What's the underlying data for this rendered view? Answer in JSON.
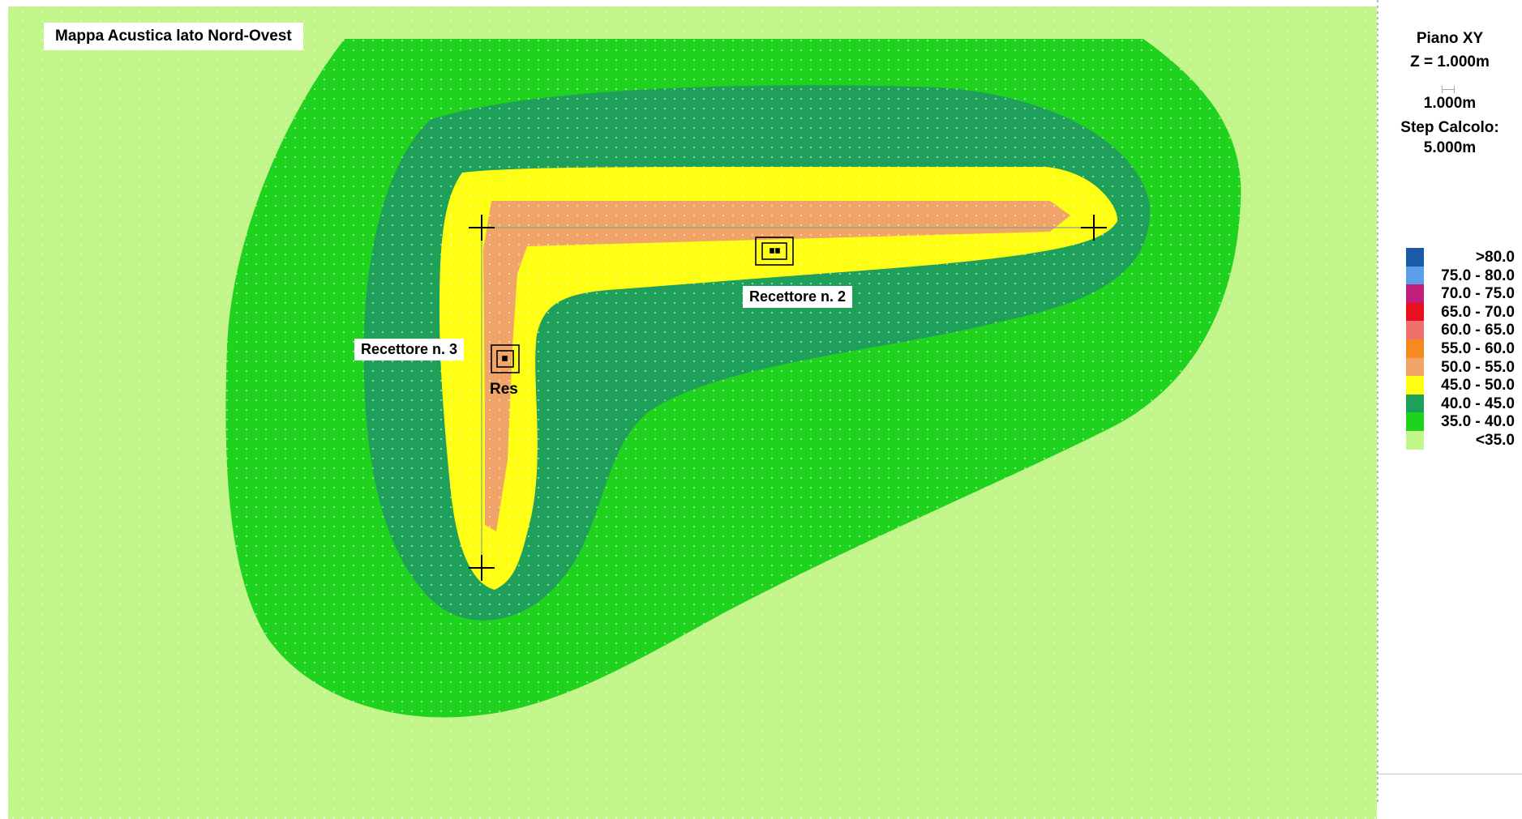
{
  "map_title": "Mappa Acustica lato Nord-Ovest",
  "labels": {
    "receptor_2": "Recettore n. 2",
    "receptor_3": "Recettore n. 3",
    "res": "Res"
  },
  "sidebar": {
    "plane": "Piano XY",
    "z": "Z = 1.000m",
    "scale": "1.000m",
    "step_label": "Step Calcolo:",
    "step_value": "5.000m"
  },
  "legend": [
    {
      "label": ">80.0",
      "color": "#1a5aa8"
    },
    {
      "label": "75.0 - 80.0",
      "color": "#5aa0e8"
    },
    {
      "label": "70.0 - 75.0",
      "color": "#c0207a"
    },
    {
      "label": "65.0 - 70.0",
      "color": "#e8101e"
    },
    {
      "label": "60.0 - 65.0",
      "color": "#f07070"
    },
    {
      "label": "55.0 - 60.0",
      "color": "#f58a20"
    },
    {
      "label": "50.0 - 55.0",
      "color": "#f0a468"
    },
    {
      "label": "45.0 - 50.0",
      "color": "#ffff14"
    },
    {
      "label": "40.0 - 45.0",
      "color": "#1ea05a"
    },
    {
      "label": "35.0 - 40.0",
      "color": "#1ed21e"
    },
    {
      "label": "<35.0",
      "color": "#c2f58a"
    }
  ],
  "colors": {
    "bg": "#c2f58a",
    "zone_35_40": "#1ed21e",
    "zone_40_45": "#1ea05a",
    "zone_45_50": "#ffff14",
    "zone_50_55": "#f0a468"
  }
}
